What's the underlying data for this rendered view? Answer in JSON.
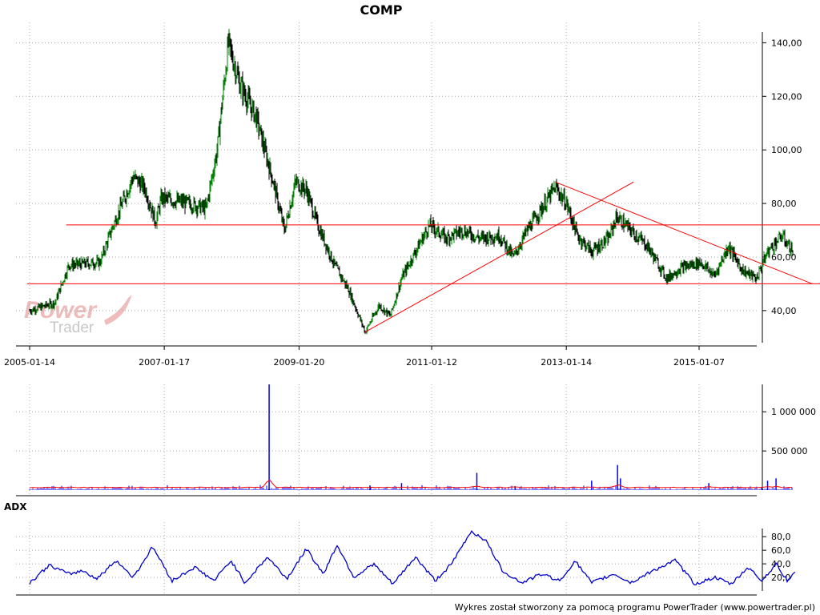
{
  "chart_data": [
    {
      "type": "line",
      "subtype": "candlestick",
      "title": "COMP",
      "x_ticks": [
        "2005-01-14",
        "2007-01-17",
        "2009-01-20",
        "2011-01-12",
        "2013-01-14",
        "2015-01-07"
      ],
      "y_ticks": [
        "40,00",
        "60,00",
        "80,00",
        "100,00",
        "120,00",
        "140,00"
      ],
      "ylim": [
        28,
        144
      ],
      "grid": true,
      "price_anchors": [
        {
          "d": "2005-01-14",
          "v": 40
        },
        {
          "d": "2005-06-01",
          "v": 43
        },
        {
          "d": "2005-08-15",
          "v": 57
        },
        {
          "d": "2006-02-01",
          "v": 58
        },
        {
          "d": "2006-04-15",
          "v": 72
        },
        {
          "d": "2006-08-01",
          "v": 90
        },
        {
          "d": "2006-10-01",
          "v": 86
        },
        {
          "d": "2006-12-01",
          "v": 73
        },
        {
          "d": "2007-01-01",
          "v": 82
        },
        {
          "d": "2007-06-01",
          "v": 80
        },
        {
          "d": "2007-09-01",
          "v": 78
        },
        {
          "d": "2007-11-01",
          "v": 100
        },
        {
          "d": "2008-01-01",
          "v": 140
        },
        {
          "d": "2008-03-01",
          "v": 125
        },
        {
          "d": "2008-06-01",
          "v": 112
        },
        {
          "d": "2008-09-01",
          "v": 88
        },
        {
          "d": "2008-11-01",
          "v": 70
        },
        {
          "d": "2009-01-01",
          "v": 88
        },
        {
          "d": "2009-03-01",
          "v": 85
        },
        {
          "d": "2009-05-01",
          "v": 72
        },
        {
          "d": "2009-08-01",
          "v": 57
        },
        {
          "d": "2009-10-15",
          "v": 48
        },
        {
          "d": "2010-01-15",
          "v": 32
        },
        {
          "d": "2010-04-01",
          "v": 42
        },
        {
          "d": "2010-06-01",
          "v": 38
        },
        {
          "d": "2010-08-01",
          "v": 52
        },
        {
          "d": "2010-10-15",
          "v": 62
        },
        {
          "d": "2011-01-01",
          "v": 72
        },
        {
          "d": "2011-04-01",
          "v": 67
        },
        {
          "d": "2011-07-01",
          "v": 70
        },
        {
          "d": "2011-10-01",
          "v": 67
        },
        {
          "d": "2012-01-15",
          "v": 68
        },
        {
          "d": "2012-04-01",
          "v": 60
        },
        {
          "d": "2012-06-15",
          "v": 70
        },
        {
          "d": "2012-09-01",
          "v": 78
        },
        {
          "d": "2012-11-15",
          "v": 86
        },
        {
          "d": "2013-01-15",
          "v": 80
        },
        {
          "d": "2013-03-15",
          "v": 68
        },
        {
          "d": "2013-06-01",
          "v": 62
        },
        {
          "d": "2013-09-01",
          "v": 67
        },
        {
          "d": "2013-10-15",
          "v": 75
        },
        {
          "d": "2014-01-01",
          "v": 70
        },
        {
          "d": "2014-04-01",
          "v": 64
        },
        {
          "d": "2014-07-15",
          "v": 52
        },
        {
          "d": "2014-10-01",
          "v": 56
        },
        {
          "d": "2015-01-15",
          "v": 58
        },
        {
          "d": "2015-04-01",
          "v": 53
        },
        {
          "d": "2015-06-15",
          "v": 64
        },
        {
          "d": "2015-09-01",
          "v": 55
        },
        {
          "d": "2015-11-15",
          "v": 52
        },
        {
          "d": "2016-01-15",
          "v": 62
        },
        {
          "d": "2016-04-01",
          "v": 68
        },
        {
          "d": "2016-06-01",
          "v": 62
        }
      ],
      "lines": [
        {
          "kind": "horizontal",
          "color": "#ff0000",
          "value": 72,
          "from": "2005-08-01",
          "to": "2016-11-01"
        },
        {
          "kind": "horizontal",
          "color": "#ff0000",
          "value": 50,
          "from": "2005-01-01",
          "to": "2016-11-01"
        },
        {
          "kind": "trend",
          "color": "#ff0000",
          "from": {
            "d": "2010-01-15",
            "v": 32
          },
          "to": {
            "d": "2014-01-15",
            "v": 88
          }
        },
        {
          "kind": "trend",
          "color": "#ff0000",
          "from": {
            "d": "2012-11-15",
            "v": 88
          },
          "to": {
            "d": "2016-09-15",
            "v": 50
          }
        }
      ],
      "colors": {
        "up": "#008000",
        "down": "#000000"
      }
    },
    {
      "type": "bar",
      "name": "volume",
      "y_ticks": [
        "500 000",
        "1 000 000"
      ],
      "ylim": [
        0,
        1350000
      ],
      "grid": true,
      "spikes": [
        {
          "d": "2008-08-10",
          "v": 1350000
        },
        {
          "d": "2010-02-10",
          "v": 60000
        },
        {
          "d": "2010-08-01",
          "v": 90000
        },
        {
          "d": "2011-09-15",
          "v": 220000
        },
        {
          "d": "2012-04-10",
          "v": 50000
        },
        {
          "d": "2013-06-01",
          "v": 120000
        },
        {
          "d": "2013-10-20",
          "v": 320000
        },
        {
          "d": "2013-11-05",
          "v": 150000
        },
        {
          "d": "2015-03-01",
          "v": 90000
        },
        {
          "d": "2016-01-15",
          "v": 120000
        },
        {
          "d": "2016-03-01",
          "v": 150000
        }
      ],
      "colors": {
        "bars": "#0000ff",
        "overlay": "#ff0000"
      }
    },
    {
      "type": "line",
      "title": "ADX",
      "y_ticks": [
        "20,0",
        "40,0",
        "60,0",
        "80,0"
      ],
      "ylim": [
        0,
        92
      ],
      "grid": true,
      "series": [
        {
          "values": [
            {
              "d": "2005-01-14",
              "v": 12
            },
            {
              "d": "2005-05-01",
              "v": 38
            },
            {
              "d": "2005-08-15",
              "v": 25
            },
            {
              "d": "2005-11-01",
              "v": 30
            },
            {
              "d": "2006-01-15",
              "v": 18
            },
            {
              "d": "2006-05-01",
              "v": 45
            },
            {
              "d": "2006-08-01",
              "v": 20
            },
            {
              "d": "2006-11-15",
              "v": 65
            },
            {
              "d": "2007-03-01",
              "v": 15
            },
            {
              "d": "2007-07-01",
              "v": 35
            },
            {
              "d": "2007-10-15",
              "v": 15
            },
            {
              "d": "2008-01-15",
              "v": 45
            },
            {
              "d": "2008-04-01",
              "v": 12
            },
            {
              "d": "2008-08-01",
              "v": 50
            },
            {
              "d": "2008-11-15",
              "v": 18
            },
            {
              "d": "2009-03-01",
              "v": 62
            },
            {
              "d": "2009-06-01",
              "v": 25
            },
            {
              "d": "2009-08-15",
              "v": 68
            },
            {
              "d": "2009-11-15",
              "v": 20
            },
            {
              "d": "2010-03-01",
              "v": 40
            },
            {
              "d": "2010-06-15",
              "v": 10
            },
            {
              "d": "2010-10-15",
              "v": 50
            },
            {
              "d": "2011-02-01",
              "v": 15
            },
            {
              "d": "2011-05-01",
              "v": 40
            },
            {
              "d": "2011-08-15",
              "v": 88
            },
            {
              "d": "2011-11-01",
              "v": 75
            },
            {
              "d": "2012-02-01",
              "v": 30
            },
            {
              "d": "2012-05-15",
              "v": 12
            },
            {
              "d": "2012-09-01",
              "v": 25
            },
            {
              "d": "2012-12-15",
              "v": 15
            },
            {
              "d": "2013-03-01",
              "v": 45
            },
            {
              "d": "2013-06-01",
              "v": 12
            },
            {
              "d": "2013-10-01",
              "v": 25
            },
            {
              "d": "2014-01-01",
              "v": 12
            },
            {
              "d": "2014-05-01",
              "v": 30
            },
            {
              "d": "2014-09-01",
              "v": 45
            },
            {
              "d": "2014-12-15",
              "v": 10
            },
            {
              "d": "2015-04-01",
              "v": 20
            },
            {
              "d": "2015-07-01",
              "v": 10
            },
            {
              "d": "2015-10-01",
              "v": 35
            },
            {
              "d": "2015-12-15",
              "v": 15
            },
            {
              "d": "2016-03-01",
              "v": 40
            },
            {
              "d": "2016-05-01",
              "v": 15
            },
            {
              "d": "2016-06-15",
              "v": 28
            }
          ],
          "color": "#0000cc"
        }
      ]
    }
  ],
  "footer": {
    "text": "Wykres został stworzony za pomocą programu PowerTrader (www.powertrader.pl)"
  },
  "watermark": {
    "line1": "Power",
    "line2": "Trader"
  }
}
